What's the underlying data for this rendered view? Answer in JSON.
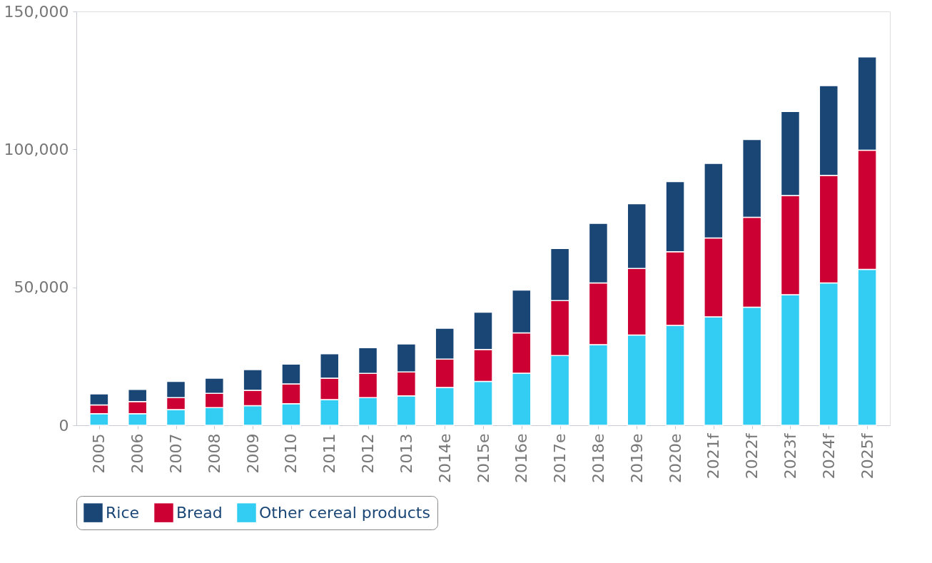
{
  "chart_data": {
    "type": "bar",
    "stacked": true,
    "categories": [
      "2005",
      "2006",
      "2007",
      "2008",
      "2009",
      "2010",
      "2011",
      "2012",
      "2013",
      "2014e",
      "2015e",
      "2016e",
      "2017e",
      "2018e",
      "2019e",
      "2020e",
      "2021f",
      "2022f",
      "2023f",
      "2024f",
      "2025f"
    ],
    "series": [
      {
        "name": "Other cereal products",
        "color": "#33ccf2",
        "values": [
          4200,
          4200,
          5700,
          6400,
          7100,
          7800,
          9300,
          10000,
          10700,
          13700,
          15900,
          18900,
          25300,
          29200,
          32700,
          36200,
          39300,
          42800,
          47300,
          51600,
          56500
        ]
      },
      {
        "name": "Bread",
        "color": "#cc0033",
        "values": [
          3200,
          4400,
          4300,
          5200,
          5600,
          7200,
          7800,
          8800,
          8600,
          10300,
          11600,
          14600,
          19900,
          22400,
          24100,
          26700,
          28600,
          32600,
          36000,
          39000,
          43200
        ]
      },
      {
        "name": "Rice",
        "color": "#1a4676",
        "values": [
          4000,
          4400,
          5900,
          5500,
          7500,
          7200,
          8800,
          9300,
          10200,
          11200,
          13500,
          15500,
          18900,
          21600,
          23500,
          25400,
          27000,
          28200,
          30400,
          32500,
          33800
        ]
      }
    ],
    "ylim": [
      0,
      150000
    ],
    "yticks": [
      {
        "value": 0,
        "label": "0"
      },
      {
        "value": 50000,
        "label": "50,000"
      },
      {
        "value": 100000,
        "label": "100,000"
      },
      {
        "value": 150000,
        "label": "150,000"
      }
    ],
    "grid": false,
    "legend": "bottom"
  }
}
